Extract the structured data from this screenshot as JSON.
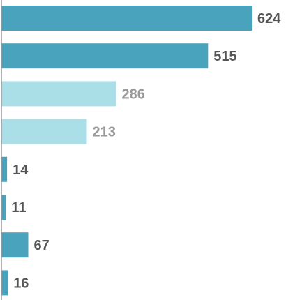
{
  "chart_data": {
    "type": "bar",
    "orientation": "horizontal",
    "title": "",
    "xlabel": "",
    "ylabel": "",
    "grid": false,
    "legend": false,
    "xlim": [
      0,
      624
    ],
    "values": [
      624,
      515,
      286,
      213,
      14,
      11,
      67,
      16
    ],
    "value_labels": [
      "624",
      "515",
      "286",
      "213",
      "14",
      "11",
      "67",
      "16"
    ],
    "bar_colors": [
      "#4aa3bd",
      "#4aa3bd",
      "#aadfe8",
      "#aadfe8",
      "#4aa3bd",
      "#4aa3bd",
      "#4aa3bd",
      "#4aa3bd"
    ],
    "label_colors": [
      "#555555",
      "#555555",
      "#999999",
      "#999999",
      "#555555",
      "#555555",
      "#555555",
      "#555555"
    ],
    "axis_color": "#999999"
  }
}
